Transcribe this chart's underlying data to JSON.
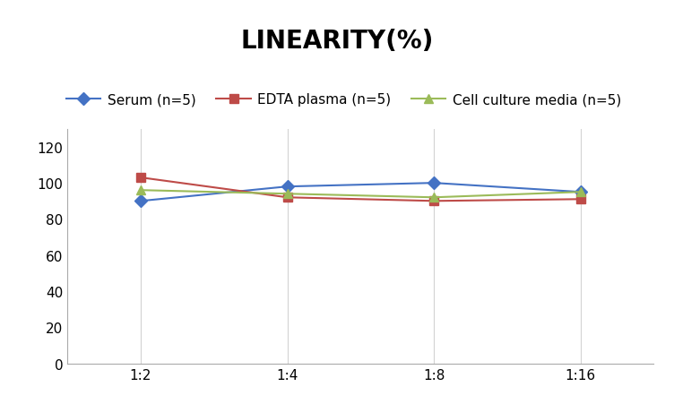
{
  "title": "LINEARITY(%)",
  "x_labels": [
    "1:2",
    "1:4",
    "1:8",
    "1:16"
  ],
  "x_positions": [
    0,
    1,
    2,
    3
  ],
  "series": [
    {
      "label": "Serum (n=5)",
      "values": [
        90,
        98,
        100,
        95
      ],
      "color": "#4472C4",
      "marker": "D",
      "linewidth": 1.5
    },
    {
      "label": "EDTA plasma (n=5)",
      "values": [
        103,
        92,
        90,
        91
      ],
      "color": "#BE4B48",
      "marker": "s",
      "linewidth": 1.5
    },
    {
      "label": "Cell culture media (n=5)",
      "values": [
        96,
        94,
        92,
        95
      ],
      "color": "#9BBB59",
      "marker": "^",
      "linewidth": 1.5
    }
  ],
  "ylim": [
    0,
    130
  ],
  "yticks": [
    0,
    20,
    40,
    60,
    80,
    100,
    120
  ],
  "grid_color": "#D3D3D3",
  "background_color": "#FFFFFF",
  "title_fontsize": 20,
  "title_fontweight": "bold",
  "tick_fontsize": 11,
  "legend_fontsize": 11
}
